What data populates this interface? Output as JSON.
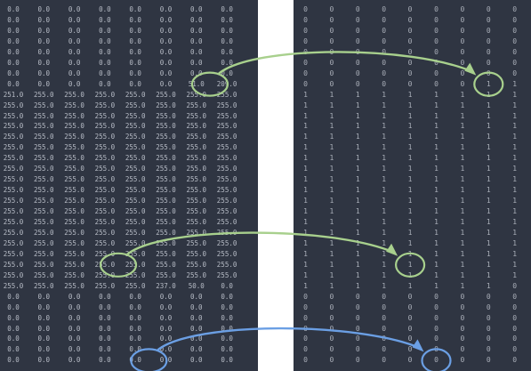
{
  "left_matrix": {
    "rows": [
      [
        "0.0",
        "0.0",
        "0.0",
        "0.0",
        "0.0",
        "0.0",
        "0.0",
        "0.0"
      ],
      [
        "0.0",
        "0.0",
        "0.0",
        "0.0",
        "0.0",
        "0.0",
        "0.0",
        "0.0"
      ],
      [
        "0.0",
        "0.0",
        "0.0",
        "0.0",
        "0.0",
        "0.0",
        "0.0",
        "0.0"
      ],
      [
        "0.0",
        "0.0",
        "0.0",
        "0.0",
        "0.0",
        "0.0",
        "0.0",
        "0.0"
      ],
      [
        "0.0",
        "0.0",
        "0.0",
        "0.0",
        "0.0",
        "0.0",
        "0.0",
        "0.0"
      ],
      [
        "0.0",
        "0.0",
        "0.0",
        "0.0",
        "0.0",
        "0.0",
        "0.0",
        "0.0"
      ],
      [
        "0.0",
        "0.0",
        "0.0",
        "0.0",
        "0.0",
        "0.0",
        "0.0",
        "0.0"
      ],
      [
        "0.0",
        "0.0",
        "0.0",
        "0.0",
        "0.0",
        "0.0",
        "51.0",
        "209.0"
      ],
      [
        "251.0",
        "255.0",
        "255.0",
        "255.0",
        "255.0",
        "255.0",
        "255.0",
        "255.0"
      ],
      [
        "255.0",
        "255.0",
        "255.0",
        "255.0",
        "255.0",
        "255.0",
        "255.0",
        "255.0"
      ],
      [
        "255.0",
        "255.0",
        "255.0",
        "255.0",
        "255.0",
        "255.0",
        "255.0",
        "255.0"
      ],
      [
        "255.0",
        "255.0",
        "255.0",
        "255.0",
        "255.0",
        "255.0",
        "255.0",
        "255.0"
      ],
      [
        "255.0",
        "255.0",
        "255.0",
        "255.0",
        "255.0",
        "255.0",
        "255.0",
        "255.0"
      ],
      [
        "255.0",
        "255.0",
        "255.0",
        "255.0",
        "255.0",
        "255.0",
        "255.0",
        "255.0"
      ],
      [
        "255.0",
        "255.0",
        "255.0",
        "255.0",
        "255.0",
        "255.0",
        "255.0",
        "255.0"
      ],
      [
        "255.0",
        "255.0",
        "255.0",
        "255.0",
        "255.0",
        "255.0",
        "255.0",
        "255.0"
      ],
      [
        "255.0",
        "255.0",
        "255.0",
        "255.0",
        "255.0",
        "255.0",
        "255.0",
        "255.0"
      ],
      [
        "255.0",
        "255.0",
        "255.0",
        "255.0",
        "255.0",
        "255.0",
        "255.0",
        "255.0"
      ],
      [
        "255.0",
        "255.0",
        "255.0",
        "255.0",
        "255.0",
        "255.0",
        "255.0",
        "255.0"
      ],
      [
        "255.0",
        "255.0",
        "255.0",
        "255.0",
        "255.0",
        "255.0",
        "255.0",
        "255.0"
      ],
      [
        "255.0",
        "255.0",
        "255.0",
        "255.0",
        "255.0",
        "255.0",
        "255.0",
        "255.0"
      ],
      [
        "255.0",
        "255.0",
        "255.0",
        "255.0",
        "255.0",
        "255.0",
        "255.0",
        "255.0"
      ],
      [
        "255.0",
        "255.0",
        "255.0",
        "255.0",
        "255.0",
        "255.0",
        "255.0",
        "255.0"
      ],
      [
        "255.0",
        "255.0",
        "255.0",
        "255.0",
        "255.0",
        "255.0",
        "255.0",
        "255.0"
      ],
      [
        "255.0",
        "255.0",
        "255.0",
        "255.0",
        "255.0",
        "255.0",
        "255.0",
        "255.0"
      ],
      [
        "255.0",
        "255.0",
        "255.0",
        "255.0",
        "255.0",
        "255.0",
        "255.0",
        "255.0"
      ],
      [
        "255.0",
        "255.0",
        "255.0",
        "255.0",
        "255.0",
        "237.0",
        "50.0",
        "0.0"
      ],
      [
        "0.0",
        "0.0",
        "0.0",
        "0.0",
        "0.0",
        "0.0",
        "0.0",
        "0.0"
      ],
      [
        "0.0",
        "0.0",
        "0.0",
        "0.0",
        "0.0",
        "0.0",
        "0.0",
        "0.0"
      ],
      [
        "0.0",
        "0.0",
        "0.0",
        "0.0",
        "0.0",
        "0.0",
        "0.0",
        "0.0"
      ],
      [
        "0.0",
        "0.0",
        "0.0",
        "0.0",
        "0.0",
        "0.0",
        "0.0",
        "0.0"
      ],
      [
        "0.0",
        "0.0",
        "0.0",
        "0.0",
        "0.0",
        "0.0",
        "0.0",
        "0.0"
      ],
      [
        "0.0",
        "0.0",
        "0.0",
        "0.0",
        "0.0",
        "0.0",
        "0.0",
        "0.0"
      ],
      [
        "0.0",
        "0.0",
        "0.0",
        "0.0",
        "0.0",
        "0.0",
        "0.0",
        "0.0"
      ]
    ]
  },
  "right_matrix": {
    "rows": [
      [
        "0",
        "0",
        "0",
        "0",
        "0",
        "0",
        "0",
        "0",
        "0"
      ],
      [
        "0",
        "0",
        "0",
        "0",
        "0",
        "0",
        "0",
        "0",
        "0"
      ],
      [
        "0",
        "0",
        "0",
        "0",
        "0",
        "0",
        "0",
        "0",
        "0"
      ],
      [
        "0",
        "0",
        "0",
        "0",
        "0",
        "0",
        "0",
        "0",
        "0"
      ],
      [
        "0",
        "0",
        "0",
        "0",
        "0",
        "0",
        "0",
        "0",
        "0"
      ],
      [
        "0",
        "0",
        "0",
        "0",
        "0",
        "0",
        "0",
        "0",
        "0"
      ],
      [
        "0",
        "0",
        "0",
        "0",
        "0",
        "0",
        "0",
        "0",
        "0"
      ],
      [
        "0",
        "0",
        "0",
        "0",
        "0",
        "0",
        "0",
        "1",
        "1"
      ],
      [
        "1",
        "1",
        "1",
        "1",
        "1",
        "1",
        "1",
        "1",
        "1"
      ],
      [
        "1",
        "1",
        "1",
        "1",
        "1",
        "1",
        "1",
        "1",
        "1"
      ],
      [
        "1",
        "1",
        "1",
        "1",
        "1",
        "1",
        "1",
        "1",
        "1"
      ],
      [
        "1",
        "1",
        "1",
        "1",
        "1",
        "1",
        "1",
        "1",
        "1"
      ],
      [
        "1",
        "1",
        "1",
        "1",
        "1",
        "1",
        "1",
        "1",
        "1"
      ],
      [
        "1",
        "1",
        "1",
        "1",
        "1",
        "1",
        "1",
        "1",
        "1"
      ],
      [
        "1",
        "1",
        "1",
        "1",
        "1",
        "1",
        "1",
        "1",
        "1"
      ],
      [
        "1",
        "1",
        "1",
        "1",
        "1",
        "1",
        "1",
        "1",
        "1"
      ],
      [
        "1",
        "1",
        "1",
        "1",
        "1",
        "1",
        "1",
        "1",
        "1"
      ],
      [
        "1",
        "1",
        "1",
        "1",
        "1",
        "1",
        "1",
        "1",
        "1"
      ],
      [
        "1",
        "1",
        "1",
        "1",
        "1",
        "1",
        "1",
        "1",
        "1"
      ],
      [
        "1",
        "1",
        "1",
        "1",
        "1",
        "1",
        "1",
        "1",
        "1"
      ],
      [
        "1",
        "1",
        "1",
        "1",
        "1",
        "1",
        "1",
        "1",
        "1"
      ],
      [
        "1",
        "1",
        "1",
        "1",
        "1",
        "1",
        "1",
        "1",
        "1"
      ],
      [
        "1",
        "1",
        "1",
        "1",
        "1",
        "1",
        "1",
        "1",
        "1"
      ],
      [
        "1",
        "1",
        "1",
        "1",
        "1",
        "1",
        "1",
        "1",
        "1"
      ],
      [
        "1",
        "1",
        "1",
        "1",
        "1",
        "1",
        "1",
        "1",
        "1"
      ],
      [
        "1",
        "1",
        "1",
        "1",
        "1",
        "1",
        "1",
        "1",
        "1"
      ],
      [
        "1",
        "1",
        "1",
        "1",
        "1",
        "1",
        "1",
        "1",
        "0"
      ],
      [
        "0",
        "0",
        "0",
        "0",
        "0",
        "0",
        "0",
        "0",
        "0"
      ],
      [
        "0",
        "0",
        "0",
        "0",
        "0",
        "0",
        "0",
        "0",
        "0"
      ],
      [
        "0",
        "0",
        "0",
        "0",
        "0",
        "0",
        "0",
        "0",
        "0"
      ],
      [
        "0",
        "0",
        "0",
        "0",
        "0",
        "0",
        "0",
        "0",
        "0"
      ],
      [
        "0",
        "0",
        "0",
        "0",
        "0",
        "0",
        "0",
        "0",
        "0"
      ],
      [
        "0",
        "0",
        "0",
        "0",
        "0",
        "0",
        "0",
        "0",
        "0"
      ],
      [
        "0",
        "0",
        "0",
        "0",
        "0",
        "0",
        "0",
        "0",
        "0"
      ]
    ]
  },
  "highlights": [
    {
      "name": "highlight-top",
      "color": "#a8d08d",
      "from": {
        "row": 7,
        "col": 6
      },
      "to": {
        "row": 7,
        "col": 7
      }
    },
    {
      "name": "highlight-middle",
      "color": "#a8d08d",
      "from": {
        "row": 24,
        "col": 3
      },
      "to": {
        "row": 24,
        "col": 4
      }
    },
    {
      "name": "highlight-bottom",
      "color": "#6b9fe4",
      "from": {
        "row": 33,
        "col": 4
      },
      "to": {
        "row": 33,
        "col": 5
      }
    }
  ]
}
